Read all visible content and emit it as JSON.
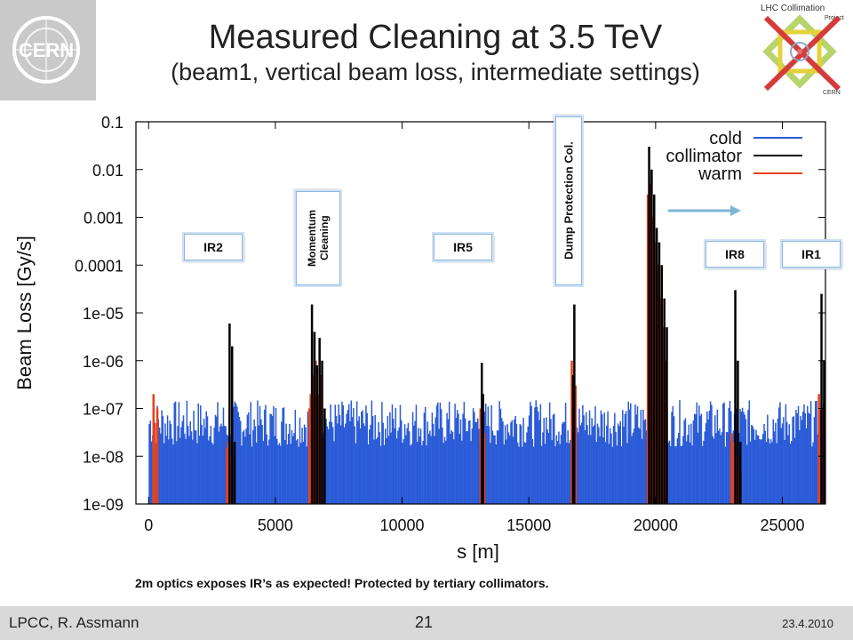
{
  "slide": {
    "title": "Measured Cleaning at 3.5 TeV",
    "subtitle": "(beam1, vertical beam loss, intermediate settings)",
    "caption": "2m optics exposes IR’s as expected! Protected by tertiary collimators.",
    "footer_left": "LPCC, R. Assmann",
    "footer_page": "21",
    "footer_date": "23.4.2010",
    "logo_left_text": "CERN",
    "logo_right_line1": "LHC Collimation",
    "logo_right_line2": "Project",
    "logo_right_line3": "CERN"
  },
  "labels": {
    "ir2": "IR2",
    "momentum": "Momentum\nCleaning",
    "ir5": "IR5",
    "dump": "Dump Protection Col.",
    "ir8": "IR8",
    "ir1": "IR1"
  },
  "chart_data": {
    "type": "bar",
    "ylabel": "Beam Loss [Gy/s]",
    "xlabel": "s [m]",
    "xlim": [
      -500,
      26700
    ],
    "ylim": [
      1e-09,
      0.1
    ],
    "yscale": "log",
    "xticks": [
      0,
      5000,
      10000,
      15000,
      20000,
      25000
    ],
    "yticks": [
      {
        "v": 0.1,
        "label": "0.1"
      },
      {
        "v": 0.01,
        "label": "0.01"
      },
      {
        "v": 0.001,
        "label": "0.001"
      },
      {
        "v": 0.0001,
        "label": "0.0001"
      },
      {
        "v": 1e-05,
        "label": "1e-05"
      },
      {
        "v": 1e-06,
        "label": "1e-06"
      },
      {
        "v": 1e-07,
        "label": "1e-07"
      },
      {
        "v": 1e-08,
        "label": "1e-08"
      },
      {
        "v": 1e-09,
        "label": "1e-09"
      }
    ],
    "legend": {
      "position": "top-right",
      "entries": [
        "cold",
        "collimator",
        "warm"
      ]
    },
    "colors": {
      "cold": "#2a5bd7",
      "collimator": "#000000",
      "warm": "#e8401c"
    },
    "series": [
      {
        "name": "cold",
        "background": {
          "x_start": 0,
          "x_end": 26659,
          "step": 45,
          "y_min": 1e-09,
          "y_max": 1.5e-07
        }
      },
      {
        "name": "collimator",
        "points": [
          [
            3150,
            6e-06
          ],
          [
            3250,
            2e-06
          ],
          [
            3350,
            2e-08
          ],
          [
            6400,
            1.5e-05
          ],
          [
            6500,
            4e-06
          ],
          [
            6600,
            8e-07
          ],
          [
            6700,
            3e-06
          ],
          [
            6800,
            1e-06
          ],
          [
            6900,
            1e-07
          ],
          [
            13100,
            9e-07
          ],
          [
            13150,
            2e-07
          ],
          [
            16750,
            1.5e-05
          ],
          [
            16700,
            5e-07
          ],
          [
            19700,
            0.03
          ],
          [
            19800,
            0.01
          ],
          [
            19900,
            0.003
          ],
          [
            20000,
            0.0006
          ],
          [
            20100,
            0.0003
          ],
          [
            20200,
            0.0001
          ],
          [
            20300,
            2e-05
          ],
          [
            20400,
            5e-06
          ],
          [
            23100,
            3e-05
          ],
          [
            23200,
            1e-06
          ],
          [
            23300,
            2e-08
          ],
          [
            26500,
            2.5e-05
          ],
          [
            26600,
            1e-06
          ]
        ]
      },
      {
        "name": "warm",
        "points": [
          [
            150,
            2e-07
          ],
          [
            200,
            5e-08
          ],
          [
            300,
            1e-07
          ],
          [
            3050,
            1.5e-08
          ],
          [
            3100,
            2e-08
          ],
          [
            3200,
            1e-08
          ],
          [
            6300,
            1e-07
          ],
          [
            6350,
            2e-07
          ],
          [
            6450,
            5e-07
          ],
          [
            6550,
            1e-06
          ],
          [
            6650,
            2e-07
          ],
          [
            6750,
            5e-07
          ],
          [
            13050,
            1e-07
          ],
          [
            13200,
            3e-08
          ],
          [
            16650,
            1e-06
          ],
          [
            16800,
            3e-07
          ],
          [
            19650,
            0.003
          ],
          [
            19750,
            0.005
          ],
          [
            19850,
            0.001
          ],
          [
            19950,
            0.0003
          ],
          [
            20050,
            0.0001
          ],
          [
            20150,
            2e-05
          ],
          [
            20250,
            5e-06
          ],
          [
            20350,
            1e-06
          ],
          [
            22950,
            3e-08
          ],
          [
            23050,
            2e-08
          ],
          [
            23150,
            1e-08
          ],
          [
            23250,
            5e-09
          ],
          [
            26400,
            2e-07
          ],
          [
            26550,
            1e-07
          ]
        ]
      }
    ]
  }
}
